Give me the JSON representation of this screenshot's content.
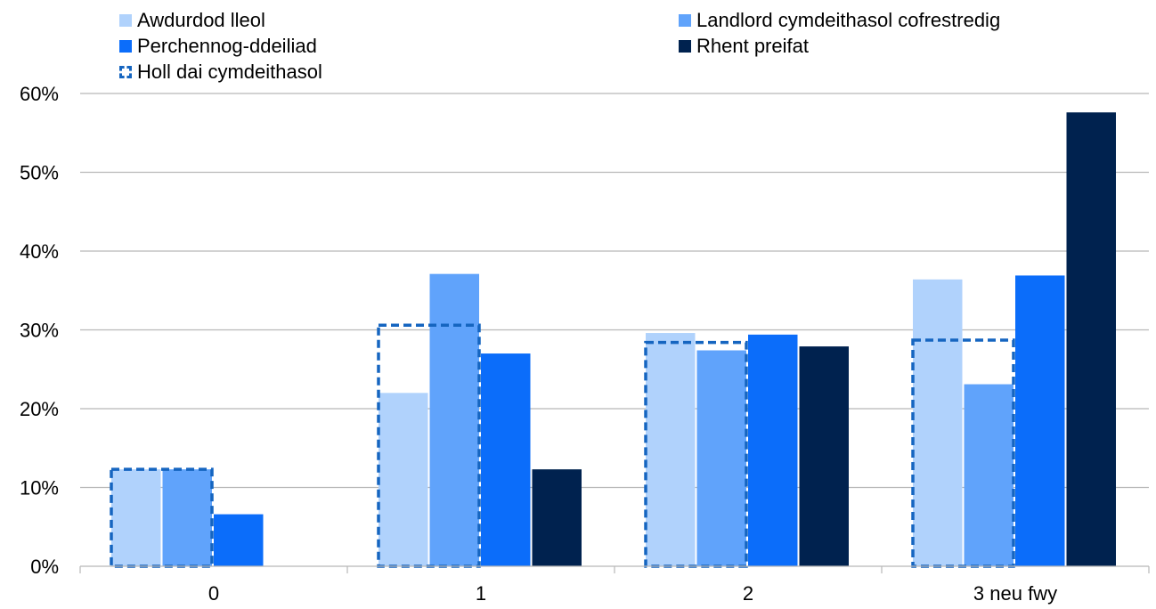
{
  "chart_data": {
    "type": "bar",
    "categories": [
      "0",
      "1",
      "2",
      "3 neu fwy"
    ],
    "yticks": [
      "0%",
      "10%",
      "20%",
      "30%",
      "40%",
      "50%",
      "60%"
    ],
    "ylim": [
      0,
      60
    ],
    "grid": true,
    "legend_position": "top",
    "series": [
      {
        "name": "Awdurdod lleol",
        "color": "#b0d2fc",
        "values": [
          12.3,
          22.0,
          29.6,
          36.4
        ]
      },
      {
        "name": "Landlord cymdeithasol cofrestredig",
        "color": "#60a3fb",
        "values": [
          12.3,
          37.1,
          27.4,
          23.1
        ]
      },
      {
        "name": "Perchennog-ddeiliad",
        "color": "#0b6dfa",
        "values": [
          6.6,
          27.0,
          29.4,
          36.9
        ]
      },
      {
        "name": "Rhent preifat",
        "color": "#00224f",
        "values": [
          0,
          12.3,
          27.9,
          57.6
        ]
      }
    ],
    "outline_series": {
      "name": "Holl dai cymdeithasol",
      "color": "#1565c0",
      "style": "dashed",
      "values": [
        12.3,
        30.6,
        28.4,
        28.7
      ]
    }
  }
}
